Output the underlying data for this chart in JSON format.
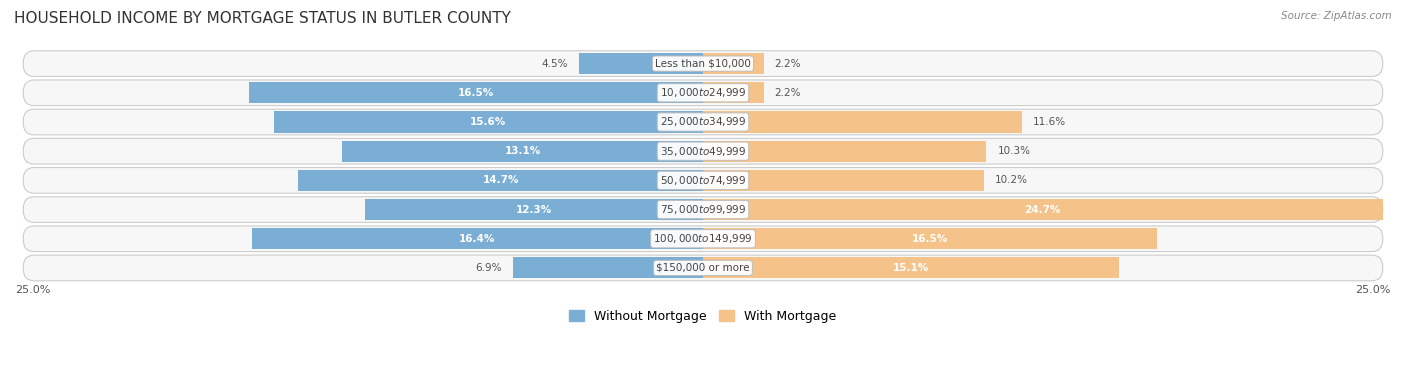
{
  "title": "HOUSEHOLD INCOME BY MORTGAGE STATUS IN BUTLER COUNTY",
  "source": "Source: ZipAtlas.com",
  "categories": [
    "Less than $10,000",
    "$10,000 to $24,999",
    "$25,000 to $34,999",
    "$35,000 to $49,999",
    "$50,000 to $74,999",
    "$75,000 to $99,999",
    "$100,000 to $149,999",
    "$150,000 or more"
  ],
  "without_mortgage": [
    4.5,
    16.5,
    15.6,
    13.1,
    14.7,
    12.3,
    16.4,
    6.9
  ],
  "with_mortgage": [
    2.2,
    2.2,
    11.6,
    10.3,
    10.2,
    24.7,
    16.5,
    15.1
  ],
  "color_without": "#7aaed4",
  "color_with": "#f5c38a",
  "row_bg": "#f0f0f0",
  "row_border": "#d8d8d8",
  "axis_max": 25.0,
  "title_fontsize": 11,
  "label_fontsize": 7.5,
  "bar_label_fontsize": 7.5,
  "legend_fontsize": 9,
  "axis_label_fontsize": 8,
  "x_axis_label_left": "25.0%",
  "x_axis_label_right": "25.0%"
}
